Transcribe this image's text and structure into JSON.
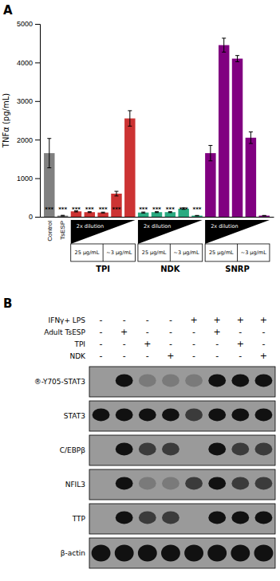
{
  "chart_data": [
    {
      "type": "bar",
      "title": "A",
      "ylabel": "TNFα (pg/mL)",
      "categories": [
        "Control",
        "TsESP",
        null,
        null,
        null,
        null,
        null,
        null,
        null,
        null,
        null,
        null,
        null,
        null,
        null,
        null,
        null
      ],
      "values": [
        1650,
        30,
        140,
        120,
        110,
        600,
        2550,
        110,
        120,
        120,
        210,
        30,
        1650,
        4450,
        4100,
        2050,
        30
      ],
      "errors": [
        380,
        8,
        15,
        12,
        10,
        60,
        200,
        12,
        12,
        12,
        18,
        5,
        200,
        180,
        80,
        150,
        5
      ],
      "colors": [
        "#808080",
        "#808080",
        "#cc3333",
        "#cc3333",
        "#cc3333",
        "#cc3333",
        "#cc3333",
        "#2aaa80",
        "#2aaa80",
        "#2aaa80",
        "#2aaa80",
        "#2aaa80",
        "#800080",
        "#800080",
        "#800080",
        "#800080",
        "#800080"
      ],
      "significance": [
        "***",
        "***",
        "***",
        "***",
        "***",
        "***",
        null,
        "***",
        "***",
        "***",
        "***",
        "***",
        null,
        null,
        null,
        null,
        null
      ],
      "group": [
        null,
        null,
        "TPI",
        "TPI",
        "TPI",
        "TPI",
        "TPI",
        "NDK",
        "NDK",
        "NDK",
        "NDK",
        "NDK",
        "SNRP",
        "SNRP",
        "SNRP",
        "SNRP",
        "SNRP"
      ],
      "dilution_label": "2x dilution",
      "concentration_labels": [
        "25 μg/mL",
        "~3 μg/mL"
      ],
      "ylim": [
        0,
        5000
      ],
      "yticks": [
        0,
        1000,
        2000,
        3000,
        4000,
        5000
      ],
      "grid": false
    },
    {
      "type": "western_blot",
      "title": "B",
      "labels": [
        "IFNγ+ LPS",
        "Adult TsESP",
        "TPI",
        "NDK"
      ],
      "plus_minus": [
        [
          "-",
          "-",
          "-",
          "-",
          "+",
          "+",
          "+",
          "+"
        ],
        [
          "-",
          "+",
          "-",
          "-",
          "-",
          "+",
          "-",
          "-"
        ],
        [
          "-",
          "-",
          "+",
          "-",
          "-",
          "-",
          "+",
          "-"
        ],
        [
          "-",
          "-",
          "-",
          "+",
          "-",
          "-",
          "-",
          "+"
        ]
      ],
      "blot_labels": [
        "®-Y705-STAT3",
        "STAT3",
        "C/EBPβ",
        "NFIL3",
        "TTP",
        "β-actin"
      ],
      "bands": [
        [
          0,
          3,
          1,
          1,
          1,
          3,
          3,
          3
        ],
        [
          3,
          3,
          3,
          3,
          2,
          3,
          3,
          3
        ],
        [
          0,
          3,
          2,
          2,
          0,
          3,
          2,
          2
        ],
        [
          0,
          3,
          1,
          1,
          2,
          3,
          2,
          2
        ],
        [
          0,
          3,
          2,
          2,
          0,
          3,
          3,
          3
        ],
        [
          3,
          3,
          3,
          3,
          3,
          3,
          3,
          3
        ]
      ]
    }
  ]
}
